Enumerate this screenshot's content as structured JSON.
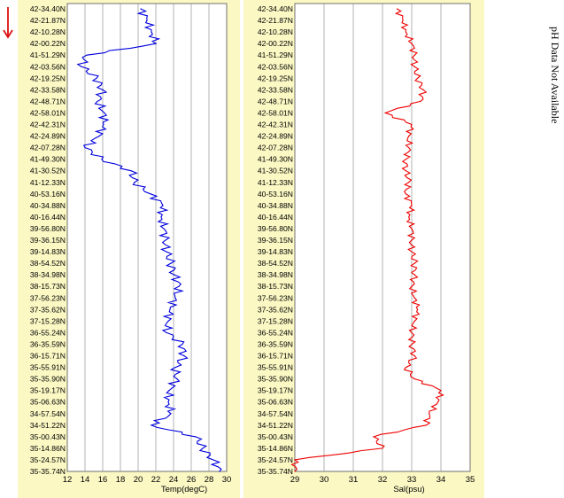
{
  "side_note": "pH Data Not Available",
  "chart_data": [
    {
      "type": "line",
      "xlabel": "Temp(degC)",
      "xlim": [
        12,
        30
      ],
      "xticks": [
        "12",
        "14",
        "16",
        "18",
        "20",
        "22",
        "24",
        "26",
        "28",
        "30"
      ],
      "xtick_values": [
        12,
        14,
        16,
        18,
        20,
        22,
        24,
        26,
        28,
        30
      ],
      "grid": true,
      "line_color": "#0000dd",
      "background_color": "#fbf8c4",
      "plot_background": "#ffffff",
      "y_axis_reversed": true,
      "y_labels": [
        "42-34.40N",
        "42-21.87N",
        "42-10.28N",
        "42-00.22N",
        "41-51.29N",
        "42-03.56N",
        "42-19.25N",
        "42-33.58N",
        "42-48.71N",
        "42-58.01N",
        "42-42.31N",
        "42-24.89N",
        "42-07.28N",
        "41-49.30N",
        "41-30.52N",
        "41-12.33N",
        "40-53.16N",
        "40-34.88N",
        "40-16.44N",
        "39-56.80N",
        "39-36.15N",
        "39-14.83N",
        "38-54.52N",
        "38-34.98N",
        "38-15.73N",
        "37-56.23N",
        "37-35.62N",
        "37-15.28N",
        "36-55.24N",
        "36-35.59N",
        "36-15.71N",
        "35-55.91N",
        "35-35.90N",
        "35-19.17N",
        "35-06.63N",
        "34-57.54N",
        "34-51.22N",
        "35-00.43N",
        "35-14.86N",
        "35-24.57N",
        "35-35.74N"
      ],
      "y": [
        0,
        1,
        2,
        3,
        4,
        5,
        6,
        7,
        8,
        9,
        10,
        11,
        12,
        13,
        14,
        15,
        16,
        17,
        18,
        19,
        20,
        21,
        22,
        23,
        24,
        25,
        26,
        27,
        28,
        29,
        30,
        31,
        32,
        33,
        34,
        35,
        36,
        37,
        38,
        39,
        40
      ],
      "values": [
        20.3,
        21.0,
        21.5,
        22.0,
        14.2,
        13.6,
        15.3,
        16.0,
        15.4,
        16.2,
        16.1,
        15.6,
        14.0,
        15.9,
        19.2,
        19.6,
        21.4,
        22.8,
        22.6,
        22.9,
        23.1,
        23.2,
        23.7,
        24.1,
        24.6,
        24.2,
        23.6,
        23.4,
        23.2,
        25.0,
        25.2,
        24.2,
        24.4,
        23.5,
        23.4,
        23.7,
        21.5,
        26.5,
        27.3,
        28.5,
        29.2
      ]
    },
    {
      "type": "line",
      "xlabel": "Sal(psu)",
      "xlim": [
        29,
        35
      ],
      "xticks": [
        "29",
        "30",
        "31",
        "32",
        "33",
        "34",
        "35"
      ],
      "xtick_values": [
        29,
        30,
        31,
        32,
        33,
        34,
        35
      ],
      "grid": true,
      "line_color": "#ee0000",
      "background_color": "#fbf8c4",
      "plot_background": "#ffffff",
      "y_axis_reversed": true,
      "y_labels": [
        "42-34.40N",
        "42-21.87N",
        "42-10.28N",
        "42-00.22N",
        "41-51.29N",
        "42-03.56N",
        "42-19.25N",
        "42-33.58N",
        "42-48.71N",
        "42-58.01N",
        "42-42.31N",
        "42-24.89N",
        "42-07.28N",
        "41-49.30N",
        "41-30.52N",
        "41-12.33N",
        "40-53.16N",
        "40-34.88N",
        "40-16.44N",
        "39-56.80N",
        "39-36.15N",
        "39-14.83N",
        "38-54.52N",
        "38-34.98N",
        "38-15.73N",
        "37-56.23N",
        "37-35.62N",
        "37-15.28N",
        "36-55.24N",
        "36-35.59N",
        "36-15.71N",
        "35-55.91N",
        "35-35.90N",
        "35-19.17N",
        "35-06.63N",
        "34-57.54N",
        "34-51.22N",
        "35-00.43N",
        "35-14.86N",
        "35-24.57N",
        "35-35.74N"
      ],
      "y": [
        0,
        1,
        2,
        3,
        4,
        5,
        6,
        7,
        8,
        9,
        10,
        11,
        12,
        13,
        14,
        15,
        16,
        17,
        18,
        19,
        20,
        21,
        22,
        23,
        24,
        25,
        26,
        27,
        28,
        29,
        30,
        31,
        32,
        33,
        34,
        35,
        36,
        37,
        38,
        39,
        40
      ],
      "values": [
        32.5,
        32.7,
        32.8,
        33.0,
        33.1,
        33.1,
        33.2,
        33.4,
        33.3,
        32.1,
        33.0,
        32.9,
        32.9,
        32.8,
        32.8,
        32.9,
        32.8,
        33.0,
        32.9,
        33.0,
        33.0,
        33.0,
        33.1,
        33.1,
        33.0,
        33.1,
        33.2,
        33.1,
        33.0,
        33.0,
        33.1,
        32.8,
        33.1,
        34.0,
        33.9,
        33.6,
        33.5,
        31.7,
        32.0,
        29.0,
        29.0
      ]
    }
  ],
  "colors": {
    "grid": "#a0a0a0",
    "axis": "#707070",
    "direction_arrow": "#dd1111"
  },
  "direction_arrow_icon": "down-arrow-icon"
}
